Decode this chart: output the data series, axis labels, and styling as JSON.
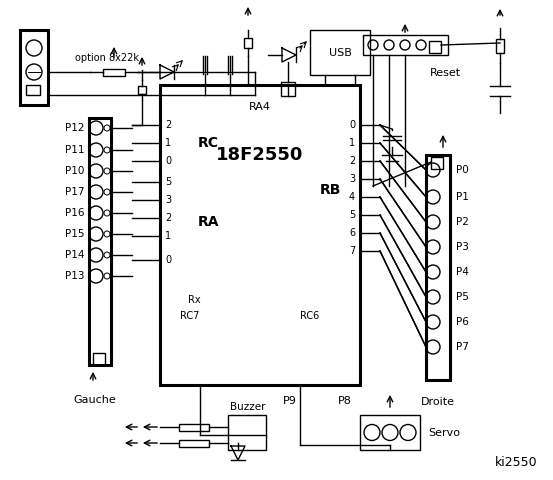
{
  "bg_color": "#ffffff",
  "left_labels": [
    "P12",
    "P11",
    "P10",
    "P17",
    "P16",
    "P15",
    "P14",
    "P13"
  ],
  "right_labels": [
    "P0",
    "P1",
    "P2",
    "P3",
    "P4",
    "P5",
    "P6",
    "P7"
  ],
  "rc_pins": [
    "2",
    "1",
    "0"
  ],
  "ra_pins": [
    "5",
    "3",
    "2",
    "1",
    "0"
  ],
  "rb_pins": [
    "0",
    "1",
    "2",
    "3",
    "4",
    "5",
    "6",
    "7"
  ],
  "figsize": [
    5.53,
    4.8
  ],
  "dpi": 100
}
